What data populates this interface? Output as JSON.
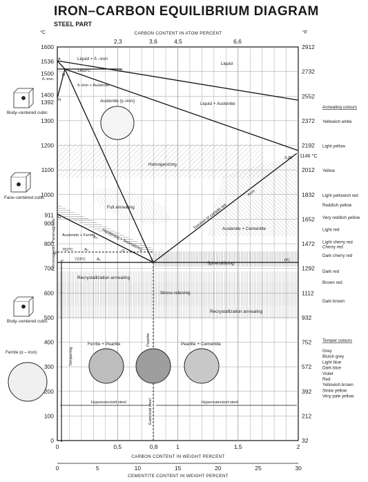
{
  "title": "IRON–CARBON EQUILIBRIUM DIAGRAM",
  "subtitle": "STEEL PART",
  "axes": {
    "left_unit": "°C",
    "right_unit": "°F",
    "top_title": "CARBON CONTENT IN ATOM PERCENT",
    "bottom_title": "CARBON CONTENT IN WEIGHT PERCENT",
    "bottom2_title": "CEMENTITE CONTENT IN WEIGHT PERCENT",
    "celsius_ticks": [
      "1600",
      "1536",
      "1500",
      "1400",
      "1392",
      "1300",
      "1200",
      "1100",
      "1000",
      "911",
      "900",
      "800",
      "700",
      "600",
      "500",
      "400",
      "300",
      "200",
      "100",
      "0"
    ],
    "fahrenheit_ticks": [
      "2912",
      "2732",
      "2552",
      "2372",
      "2192",
      "2012",
      "1832",
      "1652",
      "1472",
      "1292",
      "1112",
      "932",
      "752",
      "572",
      "392",
      "212",
      "32"
    ],
    "weight_ticks": [
      "0",
      "0,5",
      "0,8",
      "1",
      "1,5",
      "2"
    ],
    "atom_ticks": [
      "2,3",
      "3,6",
      "4,5",
      "6,6"
    ],
    "cementite_ticks": [
      "0",
      "5",
      "10",
      "15",
      "20",
      "25",
      "30"
    ]
  },
  "labels": {
    "liquid": "Liquid",
    "liquid_delta": "Liquid + δ –iron",
    "liquid_austenite": "Liquid + Austenite",
    "delta_iron": "δ–iron",
    "delta_austenite": "δ–iron + Austenite",
    "austenite_gamma": "Austenite (γ–iron)",
    "homogenizing": "Homogenizing",
    "full_annealing": "Full annealing",
    "solution_carbide": "Solution of carbide net",
    "acm": "Acm",
    "austenite_cementite": "Austenite + Cementite",
    "austenite_ferrite": "Austenite + Ferrite",
    "hardening": "Hardening + Normalizing",
    "spheroidizing": "Spheroidizing",
    "recryst_top": "Recrystallization annealing",
    "stress_relieving": "Stress relieving",
    "recryst_bottom": "Recrystallization annealing",
    "tempering": "Tempering",
    "ferrite_pearlite": "Ferrite + Pearlite",
    "pearlite": "Pearlite",
    "pearlite_cementite": "Pearlite + Cementite",
    "hypo": "Hypoeutectoid steel",
    "hyper": "Hypereutectoid steel",
    "eutectoid": "Eutectoid steel",
    "ferromagnetic": "Ferromagnetic",
    "paramagnetic": "Paramagnetic",
    "t1493": "1493°C",
    "t1146": "1146 °C",
    "t762": "762°C",
    "t723": "723°C",
    "c205": "2,05",
    "A": "A",
    "B": "B",
    "H": "H",
    "N": "N",
    "G": "G",
    "M": "M",
    "P": "P",
    "S": "S",
    "O": "O",
    "K": "(K)",
    "A1": "A₁",
    "A2": "A₂",
    "A3": "A₃"
  },
  "structures": {
    "bcc_top": "Body–centered cubic",
    "fcc": "Face–centered cubic",
    "bcc_bottom": "Body–centered cubic",
    "ferrite": "Ferrite (α – iron)"
  },
  "annealing_colours": {
    "heading": "Annealing colours",
    "items": [
      {
        "label": "Yellowish white",
        "temp_c": 1300
      },
      {
        "label": "Light yellow",
        "temp_c": 1200
      },
      {
        "label": "Yellow",
        "temp_c": 1100
      },
      {
        "label": "Light yellowish red",
        "temp_c": 1000
      },
      {
        "label": "Reddish yellow",
        "temp_c": 960
      },
      {
        "label": "Very reddish yellow",
        "temp_c": 910
      },
      {
        "label": "Light red",
        "temp_c": 860
      },
      {
        "label": "Light cherry red",
        "temp_c": 810
      },
      {
        "label": "Cherry red",
        "temp_c": 790
      },
      {
        "label": "Dark cherry red",
        "temp_c": 755
      },
      {
        "label": "Dark red",
        "temp_c": 690
      },
      {
        "label": "Brown red",
        "temp_c": 645
      },
      {
        "label": "Dark brown",
        "temp_c": 570
      }
    ]
  },
  "temper_colours": {
    "heading": "Temper colours",
    "items": [
      "Grey",
      "Bluish grey",
      "Light blue",
      "Dark blue",
      "Violet",
      "Red",
      "Yellowish brown",
      "Straw yellow",
      "Very pale yellow"
    ]
  }
}
